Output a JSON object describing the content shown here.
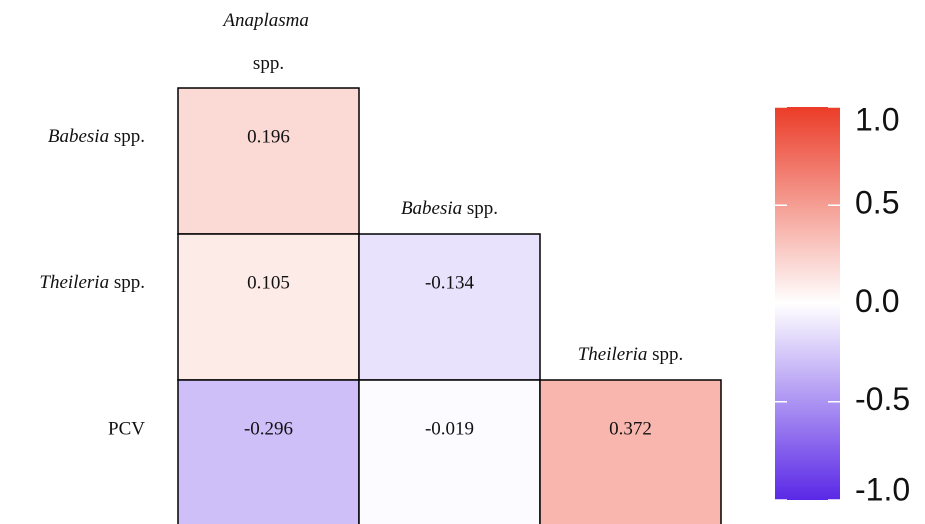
{
  "chart_data": {
    "type": "heatmap",
    "columns": [
      "Anaplasma spp.",
      "Babesia spp.",
      "Theileria spp."
    ],
    "rows": [
      "Babesia spp.",
      "Theileria spp.",
      "PCV"
    ],
    "values": [
      [
        0.196,
        null,
        null
      ],
      [
        0.105,
        -0.134,
        null
      ],
      [
        -0.296,
        -0.019,
        0.372
      ]
    ],
    "colors": {
      "low": "#5a28e6",
      "mid": "#ffffff",
      "high": "#eb3c28"
    },
    "clim": [
      -1,
      1
    ],
    "cticks": [
      {
        "value": 1,
        "label": "1.0"
      },
      {
        "value": 0.5,
        "label": "0.5"
      },
      {
        "value": 0,
        "label": "0.0"
      },
      {
        "value": -0.5,
        "label": "-0.5"
      },
      {
        "value": -1,
        "label": "-1.0"
      }
    ]
  }
}
